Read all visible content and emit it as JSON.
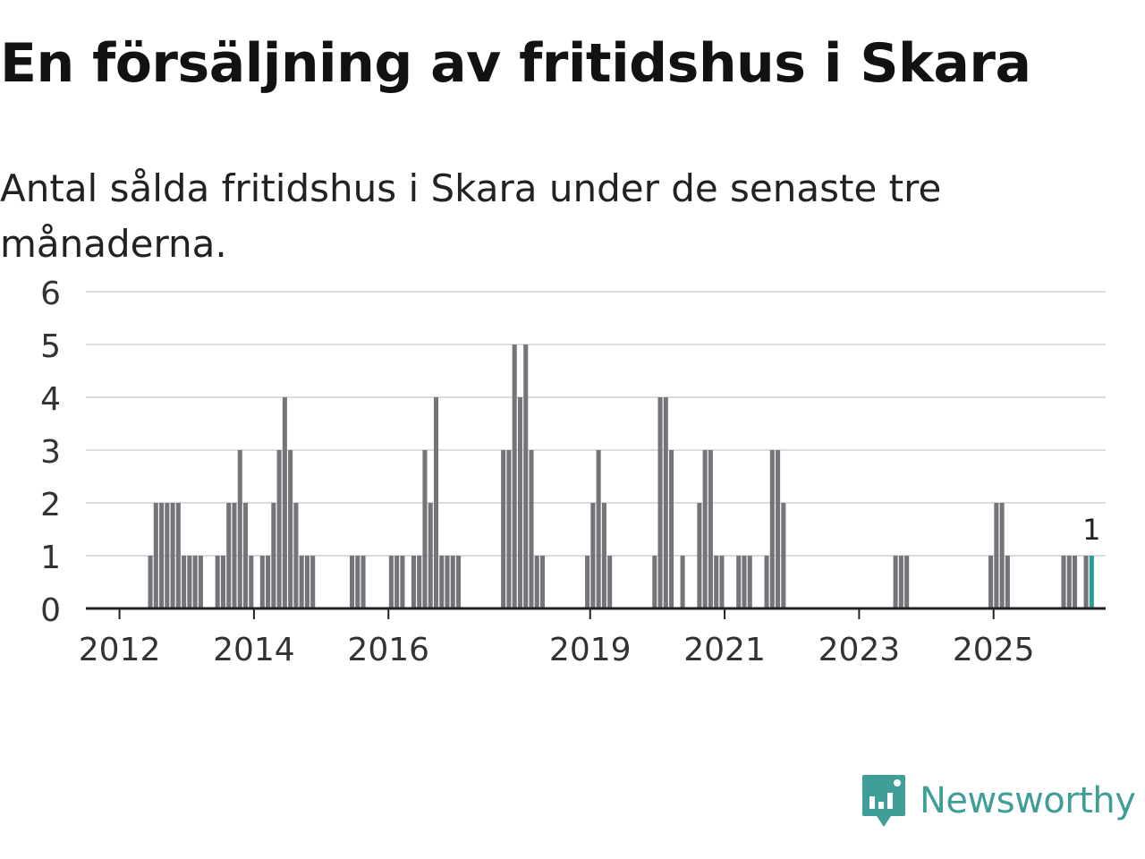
{
  "title": "En försäljning av fritidshus i Skara",
  "subtitle": "Antal sålda fritidshus i Skara under de senaste tre månaderna.",
  "brand": {
    "name": "Newsworthy",
    "color": "#3f9e98",
    "icon": "newsworthy-logo-icon"
  },
  "chart_data": {
    "type": "bar",
    "ylim": [
      0,
      6
    ],
    "y_ticks": [
      "0",
      "1",
      "2",
      "3",
      "4",
      "5",
      "6"
    ],
    "x_range": [
      "2011-07",
      "2026-09"
    ],
    "x_ticks": [
      "2012",
      "2014",
      "2016",
      "2019",
      "2021",
      "2023",
      "2025"
    ],
    "grid": true,
    "bar_color": "#75747b",
    "highlight_color": "#2a9d95",
    "highlight_label": "1",
    "x": [
      "2012-06",
      "2012-07",
      "2012-08",
      "2012-09",
      "2012-10",
      "2012-11",
      "2012-12",
      "2013-01",
      "2013-02",
      "2013-03",
      "2013-06",
      "2013-07",
      "2013-08",
      "2013-09",
      "2013-10",
      "2013-11",
      "2013-12",
      "2014-02",
      "2014-03",
      "2014-04",
      "2014-05",
      "2014-06",
      "2014-07",
      "2014-08",
      "2014-09",
      "2014-10",
      "2014-11",
      "2015-06",
      "2015-07",
      "2015-08",
      "2016-01",
      "2016-02",
      "2016-03",
      "2016-05",
      "2016-06",
      "2016-07",
      "2016-08",
      "2016-09",
      "2016-10",
      "2016-11",
      "2016-12",
      "2017-01",
      "2017-09",
      "2017-10",
      "2017-11",
      "2017-12",
      "2018-01",
      "2018-02",
      "2018-03",
      "2018-04",
      "2018-12",
      "2019-01",
      "2019-02",
      "2019-03",
      "2019-04",
      "2019-12",
      "2020-01",
      "2020-02",
      "2020-03",
      "2020-05",
      "2020-08",
      "2020-09",
      "2020-10",
      "2020-11",
      "2020-12",
      "2021-03",
      "2021-04",
      "2021-05",
      "2021-08",
      "2021-09",
      "2021-10",
      "2021-11",
      "2023-07",
      "2023-08",
      "2023-09",
      "2024-12",
      "2025-01",
      "2025-02",
      "2025-03",
      "2026-01",
      "2026-02",
      "2026-03",
      "2026-05",
      "2026-06"
    ],
    "values": [
      1,
      2,
      2,
      2,
      2,
      2,
      1,
      1,
      1,
      1,
      1,
      1,
      2,
      2,
      3,
      2,
      1,
      1,
      1,
      2,
      3,
      4,
      3,
      2,
      1,
      1,
      1,
      1,
      1,
      1,
      1,
      1,
      1,
      1,
      1,
      3,
      2,
      4,
      1,
      1,
      1,
      1,
      3,
      3,
      5,
      4,
      5,
      3,
      1,
      1,
      1,
      2,
      3,
      2,
      1,
      1,
      4,
      4,
      3,
      1,
      2,
      3,
      3,
      1,
      1,
      1,
      1,
      1,
      1,
      3,
      3,
      2,
      1,
      1,
      1,
      1,
      2,
      2,
      1,
      1,
      1,
      1,
      1,
      1
    ]
  }
}
